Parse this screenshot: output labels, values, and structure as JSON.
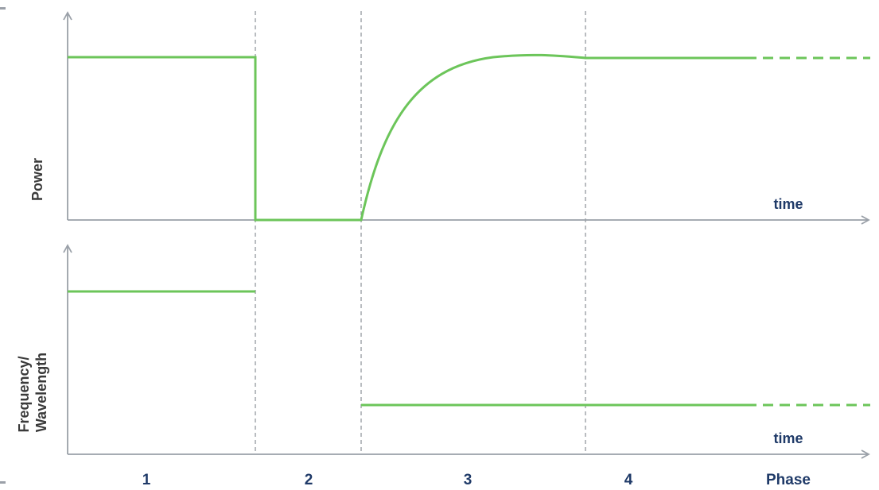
{
  "top_panel": {
    "y_label": "Power",
    "x_label": "time"
  },
  "bottom_panel": {
    "y_label_line1": "Frequency/",
    "y_label_line2": "Wavelength",
    "x_label": "time"
  },
  "phases": {
    "labels": [
      "1",
      "2",
      "3",
      "4"
    ],
    "axis_title": "Phase"
  },
  "colors": {
    "signal": "#6cc55a",
    "axis": "#9aa0a8",
    "divider": "#8a8f96",
    "label": "#1f3a68",
    "y_label": "#3a3a3a"
  }
}
